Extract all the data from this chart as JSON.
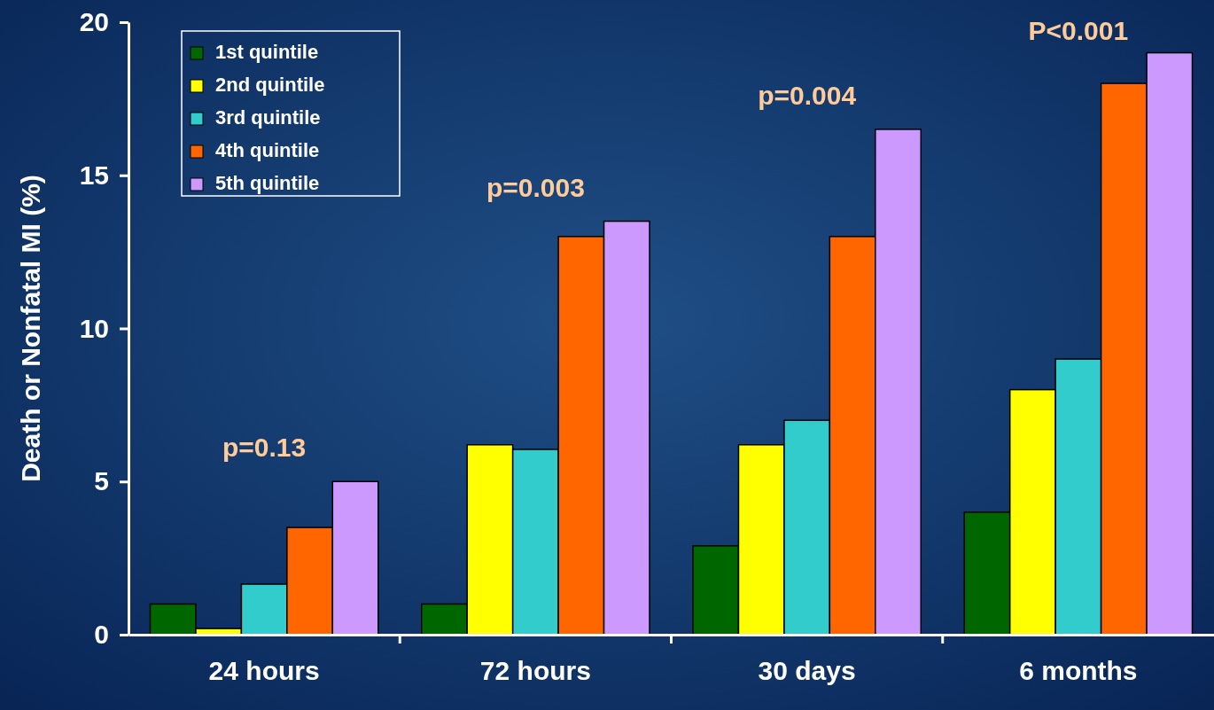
{
  "chart_data": {
    "type": "bar",
    "ylabel": "Death or Nonfatal MI (%)",
    "categories": [
      "24 hours",
      "72 hours",
      "30 days",
      "6 months"
    ],
    "series": [
      {
        "name": "1st quintile",
        "color": "#006600",
        "values": [
          1.0,
          1.0,
          2.9,
          4.0
        ]
      },
      {
        "name": "2nd quintile",
        "color": "#ffff00",
        "values": [
          0.2,
          6.2,
          6.2,
          8.0
        ]
      },
      {
        "name": "3rd quintile",
        "color": "#33cccc",
        "values": [
          1.65,
          6.05,
          7.0,
          9.0
        ]
      },
      {
        "name": "4th quintile",
        "color": "#ff6600",
        "values": [
          3.5,
          13.0,
          13.0,
          18.0
        ]
      },
      {
        "name": "5th quintile",
        "color": "#cc99ff",
        "values": [
          5.0,
          13.5,
          16.5,
          19.0
        ]
      }
    ],
    "ylim": [
      0,
      20
    ],
    "yticks": [
      0,
      5,
      10,
      15,
      20
    ],
    "legend": "top left",
    "annotations": [
      "p=0.13",
      "p=0.003",
      "p=0.004",
      "P<0.001"
    ]
  }
}
